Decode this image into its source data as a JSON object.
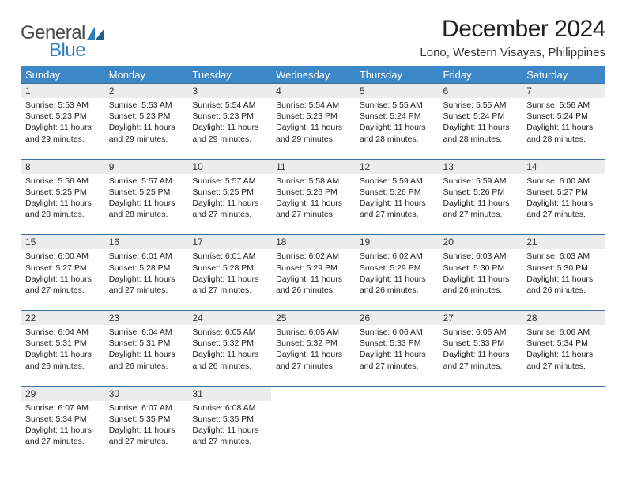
{
  "logo": {
    "text1": "General",
    "text2": "Blue"
  },
  "title": "December 2024",
  "location": "Lono, Western Visayas, Philippines",
  "headers": [
    "Sunday",
    "Monday",
    "Tuesday",
    "Wednesday",
    "Thursday",
    "Friday",
    "Saturday"
  ],
  "colors": {
    "header_bg": "#3b87c8",
    "header_fg": "#ffffff",
    "daynum_bg": "#ececec",
    "rule": "#3b6ea0",
    "logo_gray": "#4a4a4a",
    "logo_blue": "#2f7fbf"
  },
  "weeks": [
    [
      {
        "n": "1",
        "sr": "Sunrise: 5:53 AM",
        "ss": "Sunset: 5:23 PM",
        "d1": "Daylight: 11 hours",
        "d2": "and 29 minutes."
      },
      {
        "n": "2",
        "sr": "Sunrise: 5:53 AM",
        "ss": "Sunset: 5:23 PM",
        "d1": "Daylight: 11 hours",
        "d2": "and 29 minutes."
      },
      {
        "n": "3",
        "sr": "Sunrise: 5:54 AM",
        "ss": "Sunset: 5:23 PM",
        "d1": "Daylight: 11 hours",
        "d2": "and 29 minutes."
      },
      {
        "n": "4",
        "sr": "Sunrise: 5:54 AM",
        "ss": "Sunset: 5:23 PM",
        "d1": "Daylight: 11 hours",
        "d2": "and 29 minutes."
      },
      {
        "n": "5",
        "sr": "Sunrise: 5:55 AM",
        "ss": "Sunset: 5:24 PM",
        "d1": "Daylight: 11 hours",
        "d2": "and 28 minutes."
      },
      {
        "n": "6",
        "sr": "Sunrise: 5:55 AM",
        "ss": "Sunset: 5:24 PM",
        "d1": "Daylight: 11 hours",
        "d2": "and 28 minutes."
      },
      {
        "n": "7",
        "sr": "Sunrise: 5:56 AM",
        "ss": "Sunset: 5:24 PM",
        "d1": "Daylight: 11 hours",
        "d2": "and 28 minutes."
      }
    ],
    [
      {
        "n": "8",
        "sr": "Sunrise: 5:56 AM",
        "ss": "Sunset: 5:25 PM",
        "d1": "Daylight: 11 hours",
        "d2": "and 28 minutes."
      },
      {
        "n": "9",
        "sr": "Sunrise: 5:57 AM",
        "ss": "Sunset: 5:25 PM",
        "d1": "Daylight: 11 hours",
        "d2": "and 28 minutes."
      },
      {
        "n": "10",
        "sr": "Sunrise: 5:57 AM",
        "ss": "Sunset: 5:25 PM",
        "d1": "Daylight: 11 hours",
        "d2": "and 27 minutes."
      },
      {
        "n": "11",
        "sr": "Sunrise: 5:58 AM",
        "ss": "Sunset: 5:26 PM",
        "d1": "Daylight: 11 hours",
        "d2": "and 27 minutes."
      },
      {
        "n": "12",
        "sr": "Sunrise: 5:59 AM",
        "ss": "Sunset: 5:26 PM",
        "d1": "Daylight: 11 hours",
        "d2": "and 27 minutes."
      },
      {
        "n": "13",
        "sr": "Sunrise: 5:59 AM",
        "ss": "Sunset: 5:26 PM",
        "d1": "Daylight: 11 hours",
        "d2": "and 27 minutes."
      },
      {
        "n": "14",
        "sr": "Sunrise: 6:00 AM",
        "ss": "Sunset: 5:27 PM",
        "d1": "Daylight: 11 hours",
        "d2": "and 27 minutes."
      }
    ],
    [
      {
        "n": "15",
        "sr": "Sunrise: 6:00 AM",
        "ss": "Sunset: 5:27 PM",
        "d1": "Daylight: 11 hours",
        "d2": "and 27 minutes."
      },
      {
        "n": "16",
        "sr": "Sunrise: 6:01 AM",
        "ss": "Sunset: 5:28 PM",
        "d1": "Daylight: 11 hours",
        "d2": "and 27 minutes."
      },
      {
        "n": "17",
        "sr": "Sunrise: 6:01 AM",
        "ss": "Sunset: 5:28 PM",
        "d1": "Daylight: 11 hours",
        "d2": "and 27 minutes."
      },
      {
        "n": "18",
        "sr": "Sunrise: 6:02 AM",
        "ss": "Sunset: 5:29 PM",
        "d1": "Daylight: 11 hours",
        "d2": "and 26 minutes."
      },
      {
        "n": "19",
        "sr": "Sunrise: 6:02 AM",
        "ss": "Sunset: 5:29 PM",
        "d1": "Daylight: 11 hours",
        "d2": "and 26 minutes."
      },
      {
        "n": "20",
        "sr": "Sunrise: 6:03 AM",
        "ss": "Sunset: 5:30 PM",
        "d1": "Daylight: 11 hours",
        "d2": "and 26 minutes."
      },
      {
        "n": "21",
        "sr": "Sunrise: 6:03 AM",
        "ss": "Sunset: 5:30 PM",
        "d1": "Daylight: 11 hours",
        "d2": "and 26 minutes."
      }
    ],
    [
      {
        "n": "22",
        "sr": "Sunrise: 6:04 AM",
        "ss": "Sunset: 5:31 PM",
        "d1": "Daylight: 11 hours",
        "d2": "and 26 minutes."
      },
      {
        "n": "23",
        "sr": "Sunrise: 6:04 AM",
        "ss": "Sunset: 5:31 PM",
        "d1": "Daylight: 11 hours",
        "d2": "and 26 minutes."
      },
      {
        "n": "24",
        "sr": "Sunrise: 6:05 AM",
        "ss": "Sunset: 5:32 PM",
        "d1": "Daylight: 11 hours",
        "d2": "and 26 minutes."
      },
      {
        "n": "25",
        "sr": "Sunrise: 6:05 AM",
        "ss": "Sunset: 5:32 PM",
        "d1": "Daylight: 11 hours",
        "d2": "and 27 minutes."
      },
      {
        "n": "26",
        "sr": "Sunrise: 6:06 AM",
        "ss": "Sunset: 5:33 PM",
        "d1": "Daylight: 11 hours",
        "d2": "and 27 minutes."
      },
      {
        "n": "27",
        "sr": "Sunrise: 6:06 AM",
        "ss": "Sunset: 5:33 PM",
        "d1": "Daylight: 11 hours",
        "d2": "and 27 minutes."
      },
      {
        "n": "28",
        "sr": "Sunrise: 6:06 AM",
        "ss": "Sunset: 5:34 PM",
        "d1": "Daylight: 11 hours",
        "d2": "and 27 minutes."
      }
    ],
    [
      {
        "n": "29",
        "sr": "Sunrise: 6:07 AM",
        "ss": "Sunset: 5:34 PM",
        "d1": "Daylight: 11 hours",
        "d2": "and 27 minutes."
      },
      {
        "n": "30",
        "sr": "Sunrise: 6:07 AM",
        "ss": "Sunset: 5:35 PM",
        "d1": "Daylight: 11 hours",
        "d2": "and 27 minutes."
      },
      {
        "n": "31",
        "sr": "Sunrise: 6:08 AM",
        "ss": "Sunset: 5:35 PM",
        "d1": "Daylight: 11 hours",
        "d2": "and 27 minutes."
      },
      null,
      null,
      null,
      null
    ]
  ]
}
